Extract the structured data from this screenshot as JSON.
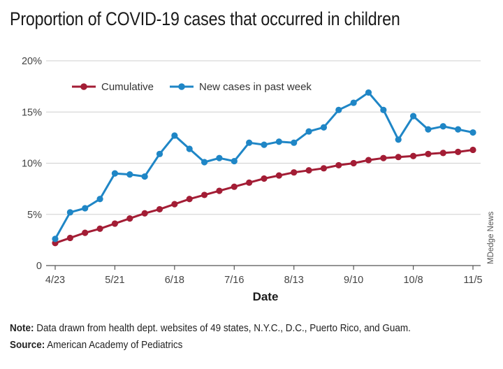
{
  "title": "Proportion of COVID-19 cases that occurred in children",
  "credit": "MDedge News",
  "note_label": "Note:",
  "note_text": "Data drawn from health dept. websites of 49 states, N.Y.C., D.C., Puerto Rico, and Guam.",
  "source_label": "Source:",
  "source_text": "American Academy of Pediatrics",
  "chart_data": {
    "type": "line",
    "xlabel": "Date",
    "ylabel": "",
    "ylim": [
      0,
      20
    ],
    "yticks": [
      0,
      5,
      10,
      15,
      20
    ],
    "yticklabels": [
      "0",
      "5%",
      "10%",
      "15%",
      "20%"
    ],
    "xticklabels": [
      "4/23",
      "5/21",
      "6/18",
      "7/16",
      "8/13",
      "9/10",
      "10/8",
      "11/5"
    ],
    "xtick_index": [
      0,
      4,
      8,
      12,
      16,
      20,
      24,
      28
    ],
    "grid": true,
    "legend": "top-left",
    "x": [
      "4/23",
      "4/30",
      "5/7",
      "5/14",
      "5/21",
      "5/28",
      "6/4",
      "6/11",
      "6/18",
      "6/25",
      "7/2",
      "7/9",
      "7/16",
      "7/23",
      "7/30",
      "8/6",
      "8/13",
      "8/20",
      "8/27",
      "9/3",
      "9/10",
      "9/17",
      "9/24",
      "10/1",
      "10/8",
      "10/15",
      "10/22",
      "10/29",
      "11/5"
    ],
    "series": [
      {
        "name": "Cumulative",
        "color": "#a31d35",
        "values": [
          2.2,
          2.7,
          3.2,
          3.6,
          4.1,
          4.6,
          5.1,
          5.5,
          6.0,
          6.5,
          6.9,
          7.3,
          7.7,
          8.1,
          8.5,
          8.8,
          9.1,
          9.3,
          9.5,
          9.8,
          10.0,
          10.3,
          10.5,
          10.6,
          10.7,
          10.9,
          11.0,
          11.1,
          11.3
        ]
      },
      {
        "name": "New cases in past week",
        "color": "#1f86c6",
        "values": [
          2.6,
          5.2,
          5.6,
          6.5,
          9.0,
          8.9,
          8.7,
          10.9,
          12.7,
          11.4,
          10.1,
          10.5,
          10.2,
          12.0,
          11.8,
          12.1,
          12.0,
          13.1,
          13.5,
          15.2,
          15.9,
          16.9,
          15.2,
          12.3,
          14.6,
          13.3,
          13.6,
          13.3,
          13.0
        ]
      }
    ]
  }
}
